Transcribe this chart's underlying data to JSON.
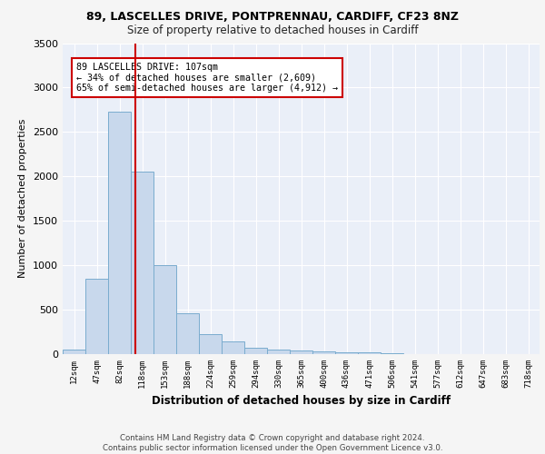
{
  "title1": "89, LASCELLES DRIVE, PONTPRENNAU, CARDIFF, CF23 8NZ",
  "title2": "Size of property relative to detached houses in Cardiff",
  "xlabel": "Distribution of detached houses by size in Cardiff",
  "ylabel": "Number of detached properties",
  "categories": [
    "12sqm",
    "47sqm",
    "82sqm",
    "118sqm",
    "153sqm",
    "188sqm",
    "224sqm",
    "259sqm",
    "294sqm",
    "330sqm",
    "365sqm",
    "400sqm",
    "436sqm",
    "471sqm",
    "506sqm",
    "541sqm",
    "577sqm",
    "612sqm",
    "647sqm",
    "683sqm",
    "718sqm"
  ],
  "values": [
    55,
    850,
    2725,
    2050,
    1005,
    455,
    225,
    145,
    70,
    55,
    45,
    30,
    25,
    20,
    10,
    5,
    0,
    0,
    0,
    0,
    0
  ],
  "bar_color": "#c8d8ec",
  "bar_edge_color": "#7aacce",
  "vline_color": "#cc0000",
  "annotation_text": "89 LASCELLES DRIVE: 107sqm\n← 34% of detached houses are smaller (2,609)\n65% of semi-detached houses are larger (4,912) →",
  "annotation_box_color": "#cc0000",
  "ylim": [
    0,
    3500
  ],
  "background_color": "#eaeff8",
  "grid_color": "#ffffff",
  "footer_text": "Contains HM Land Registry data © Crown copyright and database right 2024.\nContains public sector information licensed under the Open Government Licence v3.0."
}
